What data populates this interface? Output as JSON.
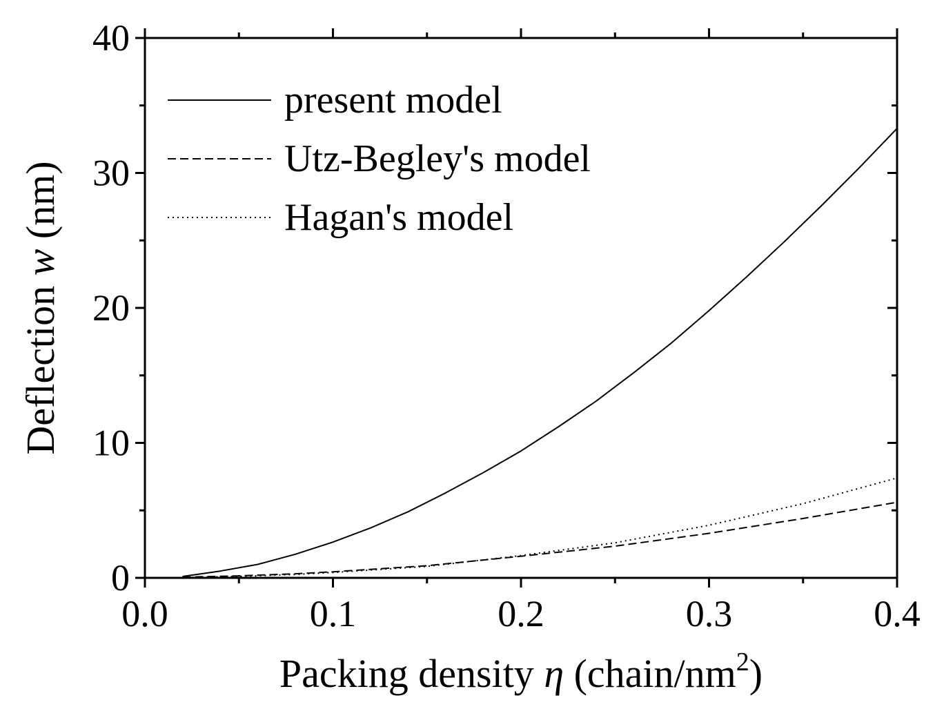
{
  "chart_data": {
    "type": "line",
    "title": "",
    "xlabel": {
      "prefix": "Packing density ",
      "symbol": "η",
      "unit_open": " (chain/nm",
      "superscript": "2",
      "unit_close": ")"
    },
    "ylabel": {
      "prefix": "Deflection ",
      "symbol": "w",
      "unit": " (nm)"
    },
    "xlim": [
      0.0,
      0.4
    ],
    "ylim": [
      0,
      40
    ],
    "x_ticks": [
      "0.0",
      "0.1",
      "0.2",
      "0.3",
      "0.4"
    ],
    "y_ticks": [
      "0",
      "10",
      "20",
      "30",
      "40"
    ],
    "grid": false,
    "legend_position": "top-left",
    "series": [
      {
        "name": "present model",
        "style": "solid",
        "x": [
          0.02,
          0.04,
          0.06,
          0.08,
          0.1,
          0.12,
          0.14,
          0.16,
          0.18,
          0.2,
          0.22,
          0.24,
          0.26,
          0.28,
          0.3,
          0.32,
          0.34,
          0.36,
          0.38,
          0.4
        ],
        "y": [
          0.1,
          0.5,
          1.0,
          1.75,
          2.65,
          3.7,
          4.9,
          6.3,
          7.8,
          9.4,
          11.2,
          13.1,
          15.2,
          17.4,
          19.8,
          22.3,
          24.9,
          27.6,
          30.4,
          33.3
        ]
      },
      {
        "name": "Utz-Begley's model",
        "style": "dashed",
        "x": [
          0.02,
          0.05,
          0.08,
          0.1,
          0.15,
          0.2,
          0.25,
          0.3,
          0.35,
          0.4
        ],
        "y": [
          0.05,
          0.15,
          0.3,
          0.45,
          0.9,
          1.6,
          2.35,
          3.3,
          4.4,
          5.6
        ]
      },
      {
        "name": "Hagan's model",
        "style": "dotted",
        "x": [
          0.02,
          0.05,
          0.08,
          0.1,
          0.15,
          0.2,
          0.25,
          0.3,
          0.35,
          0.4
        ],
        "y": [
          0.03,
          0.1,
          0.25,
          0.4,
          0.85,
          1.65,
          2.6,
          3.9,
          5.5,
          7.4
        ]
      }
    ]
  }
}
